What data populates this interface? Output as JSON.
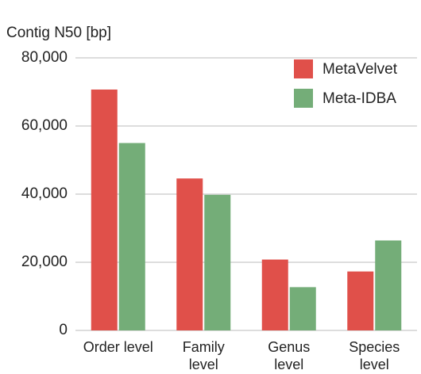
{
  "chart_data": {
    "type": "bar",
    "y_label": "Contig N50 [bp]",
    "categories": [
      "Order level",
      "Family level",
      "Genus level",
      "Species level"
    ],
    "series": [
      {
        "name": "MetaVelvet",
        "color": "#e0504a",
        "values": [
          70700,
          44600,
          20800,
          17300
        ]
      },
      {
        "name": "Meta-IDBA",
        "color": "#74ad78",
        "values": [
          55000,
          39800,
          12700,
          26400
        ]
      }
    ],
    "ylim": [
      0,
      80000
    ],
    "yticks": [
      0,
      {
        "value": 20000,
        "label": "20,000"
      },
      {
        "value": 40000,
        "label": "40,000"
      },
      {
        "value": 60000,
        "label": "60,000"
      },
      {
        "value": 80000,
        "label": "80,000"
      }
    ],
    "grid": true,
    "legend": "top-right"
  }
}
